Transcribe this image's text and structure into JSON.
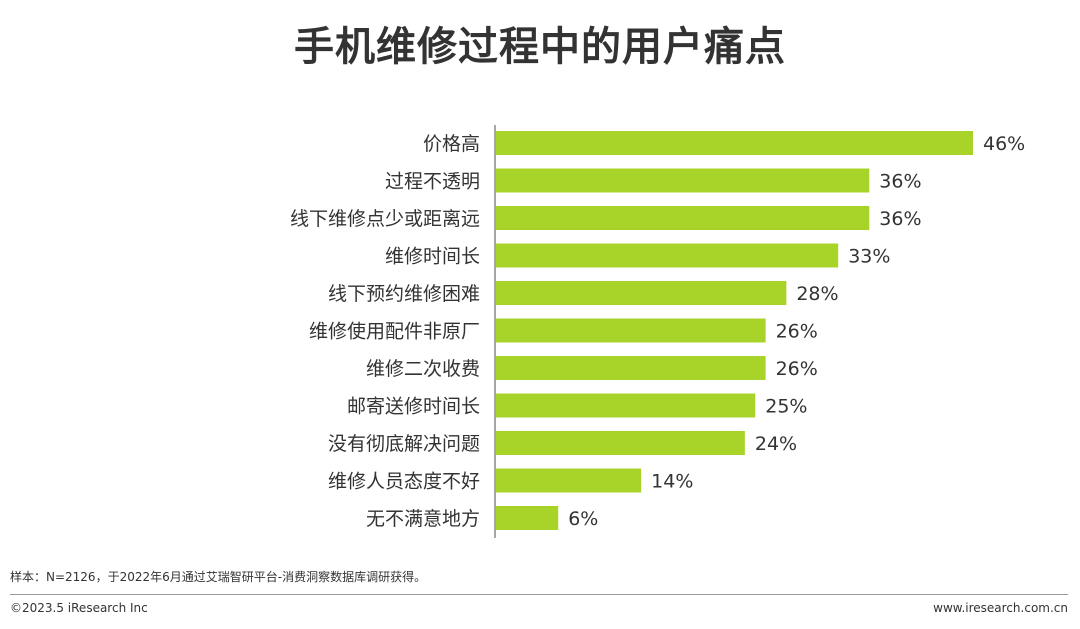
{
  "chart_data": {
    "type": "bar",
    "orientation": "horizontal",
    "title": "手机维修过程中的用户痛点",
    "categories": [
      "价格高",
      "过程不透明",
      "线下维修点少或距离远",
      "维修时间长",
      "线下预约维修困难",
      "维修使用配件非原厂",
      "维修二次收费",
      "邮寄送修时间长",
      "没有彻底解决问题",
      "维修人员态度不好",
      "无不满意地方"
    ],
    "values": [
      46,
      36,
      36,
      33,
      28,
      26,
      26,
      25,
      24,
      14,
      6
    ],
    "value_labels": [
      "46%",
      "36%",
      "36%",
      "33%",
      "28%",
      "26%",
      "26%",
      "25%",
      "24%",
      "14%",
      "6%"
    ],
    "xlim": [
      0,
      46
    ],
    "bar_color": "#a8d42a",
    "grid": false,
    "legend": "none"
  },
  "footer": {
    "note": "样本：N=2126，于2022年6月通过艾瑞智研平台-消费洞察数据库调研获得。",
    "copyright": "©2023.5 iResearch Inc",
    "website": "www.iresearch.com.cn"
  }
}
